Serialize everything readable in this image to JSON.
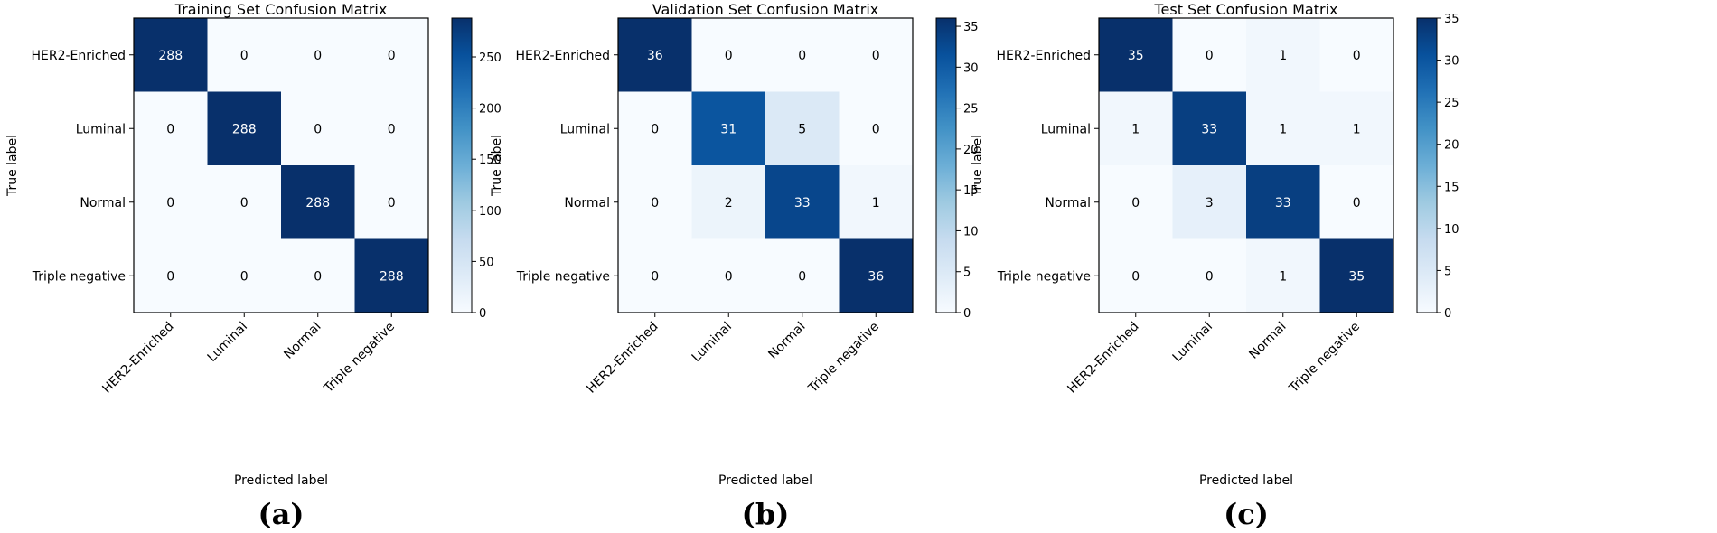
{
  "chart_data": [
    {
      "type": "heatmap",
      "panel_label": "(a)",
      "title": "Training Set Confusion Matrix",
      "xlabel": "Predicted label",
      "ylabel": "True label",
      "x_categories": [
        "HER2-Enriched",
        "Luminal",
        "Normal",
        "Triple negative"
      ],
      "y_categories": [
        "HER2-Enriched",
        "Luminal",
        "Normal",
        "Triple negative"
      ],
      "matrix": [
        [
          288,
          0,
          0,
          0
        ],
        [
          0,
          288,
          0,
          0
        ],
        [
          0,
          0,
          288,
          0
        ],
        [
          0,
          0,
          0,
          288
        ]
      ],
      "colorbar": {
        "range": [
          0,
          288
        ],
        "ticks": [
          0,
          50,
          100,
          150,
          200,
          250
        ]
      },
      "colormap": "Blues",
      "grid": false
    },
    {
      "type": "heatmap",
      "panel_label": "(b)",
      "title": "Validation Set Confusion Matrix",
      "xlabel": "Predicted label",
      "ylabel": "True label",
      "x_categories": [
        "HER2-Enriched",
        "Luminal",
        "Normal",
        "Triple negative"
      ],
      "y_categories": [
        "HER2-Enriched",
        "Luminal",
        "Normal",
        "Triple negative"
      ],
      "matrix": [
        [
          36,
          0,
          0,
          0
        ],
        [
          0,
          31,
          5,
          0
        ],
        [
          0,
          2,
          33,
          1
        ],
        [
          0,
          0,
          0,
          36
        ]
      ],
      "colorbar": {
        "range": [
          0,
          36
        ],
        "ticks": [
          0,
          5,
          10,
          15,
          20,
          25,
          30,
          35
        ]
      },
      "colormap": "Blues",
      "grid": false
    },
    {
      "type": "heatmap",
      "panel_label": "(c)",
      "title": "Test Set Confusion Matrix",
      "xlabel": "Predicted label",
      "ylabel": "True label",
      "x_categories": [
        "HER2-Enriched",
        "Luminal",
        "Normal",
        "Triple negative"
      ],
      "y_categories": [
        "HER2-Enriched",
        "Luminal",
        "Normal",
        "Triple negative"
      ],
      "matrix": [
        [
          35,
          0,
          1,
          0
        ],
        [
          1,
          33,
          1,
          1
        ],
        [
          0,
          3,
          33,
          0
        ],
        [
          0,
          0,
          1,
          35
        ]
      ],
      "colorbar": {
        "range": [
          0,
          35
        ],
        "ticks": [
          0,
          5,
          10,
          15,
          20,
          25,
          30,
          35
        ]
      },
      "colormap": "Blues",
      "grid": false
    }
  ]
}
